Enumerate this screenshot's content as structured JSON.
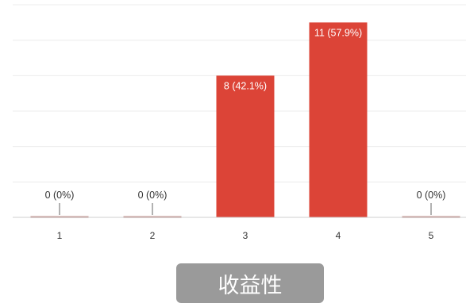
{
  "chart_data": {
    "type": "bar",
    "title": "收益性",
    "categories": [
      "1",
      "2",
      "3",
      "4",
      "5"
    ],
    "values": [
      0,
      0,
      8,
      11,
      0
    ],
    "data_labels": [
      "0 (0%)",
      "0 (0%)",
      "8 (42.1%)",
      "11 (57.9%)",
      "0 (0%)"
    ],
    "ylim": [
      0,
      12
    ],
    "grid": true,
    "colors": {
      "bar": "#dc4437",
      "zero_mark": "#d7b7b4",
      "title_bg": "#9a9a9a"
    }
  }
}
